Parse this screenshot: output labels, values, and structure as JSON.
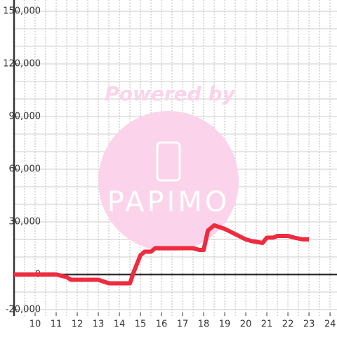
{
  "chart_data": {
    "type": "line",
    "watermark": [
      "Powered by",
      "PAPIMO"
    ],
    "x": [
      9,
      11,
      11.5,
      11.7,
      13,
      13.5,
      14.5,
      14.7,
      15,
      15.2,
      15.5,
      15.7,
      17.5,
      17.8,
      18,
      18.2,
      18.5,
      19,
      19.5,
      20,
      20.3,
      20.8,
      21,
      21.3,
      21.5,
      22,
      22.3,
      22.7,
      23
    ],
    "series": [
      {
        "color": "#ee2b3f",
        "values": [
          0,
          0,
          -1500,
          -3000,
          -3000,
          -5000,
          -5000,
          2000,
          11000,
          13000,
          13000,
          15000,
          15000,
          14000,
          14000,
          25000,
          28000,
          26000,
          23000,
          20000,
          19000,
          18000,
          21000,
          21000,
          22000,
          22000,
          21000,
          20000,
          20000
        ]
      }
    ],
    "xlim": [
      9,
      24.33
    ],
    "ylim": [
      -23600,
      156400
    ],
    "xticks": [
      10,
      11,
      12,
      13,
      14,
      15,
      16,
      17,
      18,
      19,
      20,
      21,
      22,
      23,
      24
    ],
    "yticks": [
      {
        "value": -20000,
        "label": "-20,000"
      },
      0,
      {
        "value": 30000,
        "label": "30,000"
      },
      {
        "value": 60000,
        "label": "60,000"
      },
      {
        "value": 90000,
        "label": "90,000"
      },
      {
        "value": 120000,
        "label": "120,000"
      },
      {
        "value": 150000,
        "label": "150,000"
      }
    ],
    "x_gridlines": [
      9.5,
      10,
      10.5,
      11,
      11.5,
      12,
      12.5,
      13,
      13.5,
      14,
      14.5,
      15,
      15.5,
      16,
      16.5,
      17,
      17.5,
      18,
      18.5,
      19,
      19.5,
      20,
      20.5,
      21,
      21.5,
      22,
      22.5,
      23,
      23.5,
      24
    ],
    "y_gridlines": [
      -20000,
      -10000,
      10000,
      20000,
      30000,
      40000,
      50000,
      60000,
      70000,
      80000,
      90000,
      100000,
      110000,
      120000,
      130000,
      140000,
      150000
    ]
  }
}
